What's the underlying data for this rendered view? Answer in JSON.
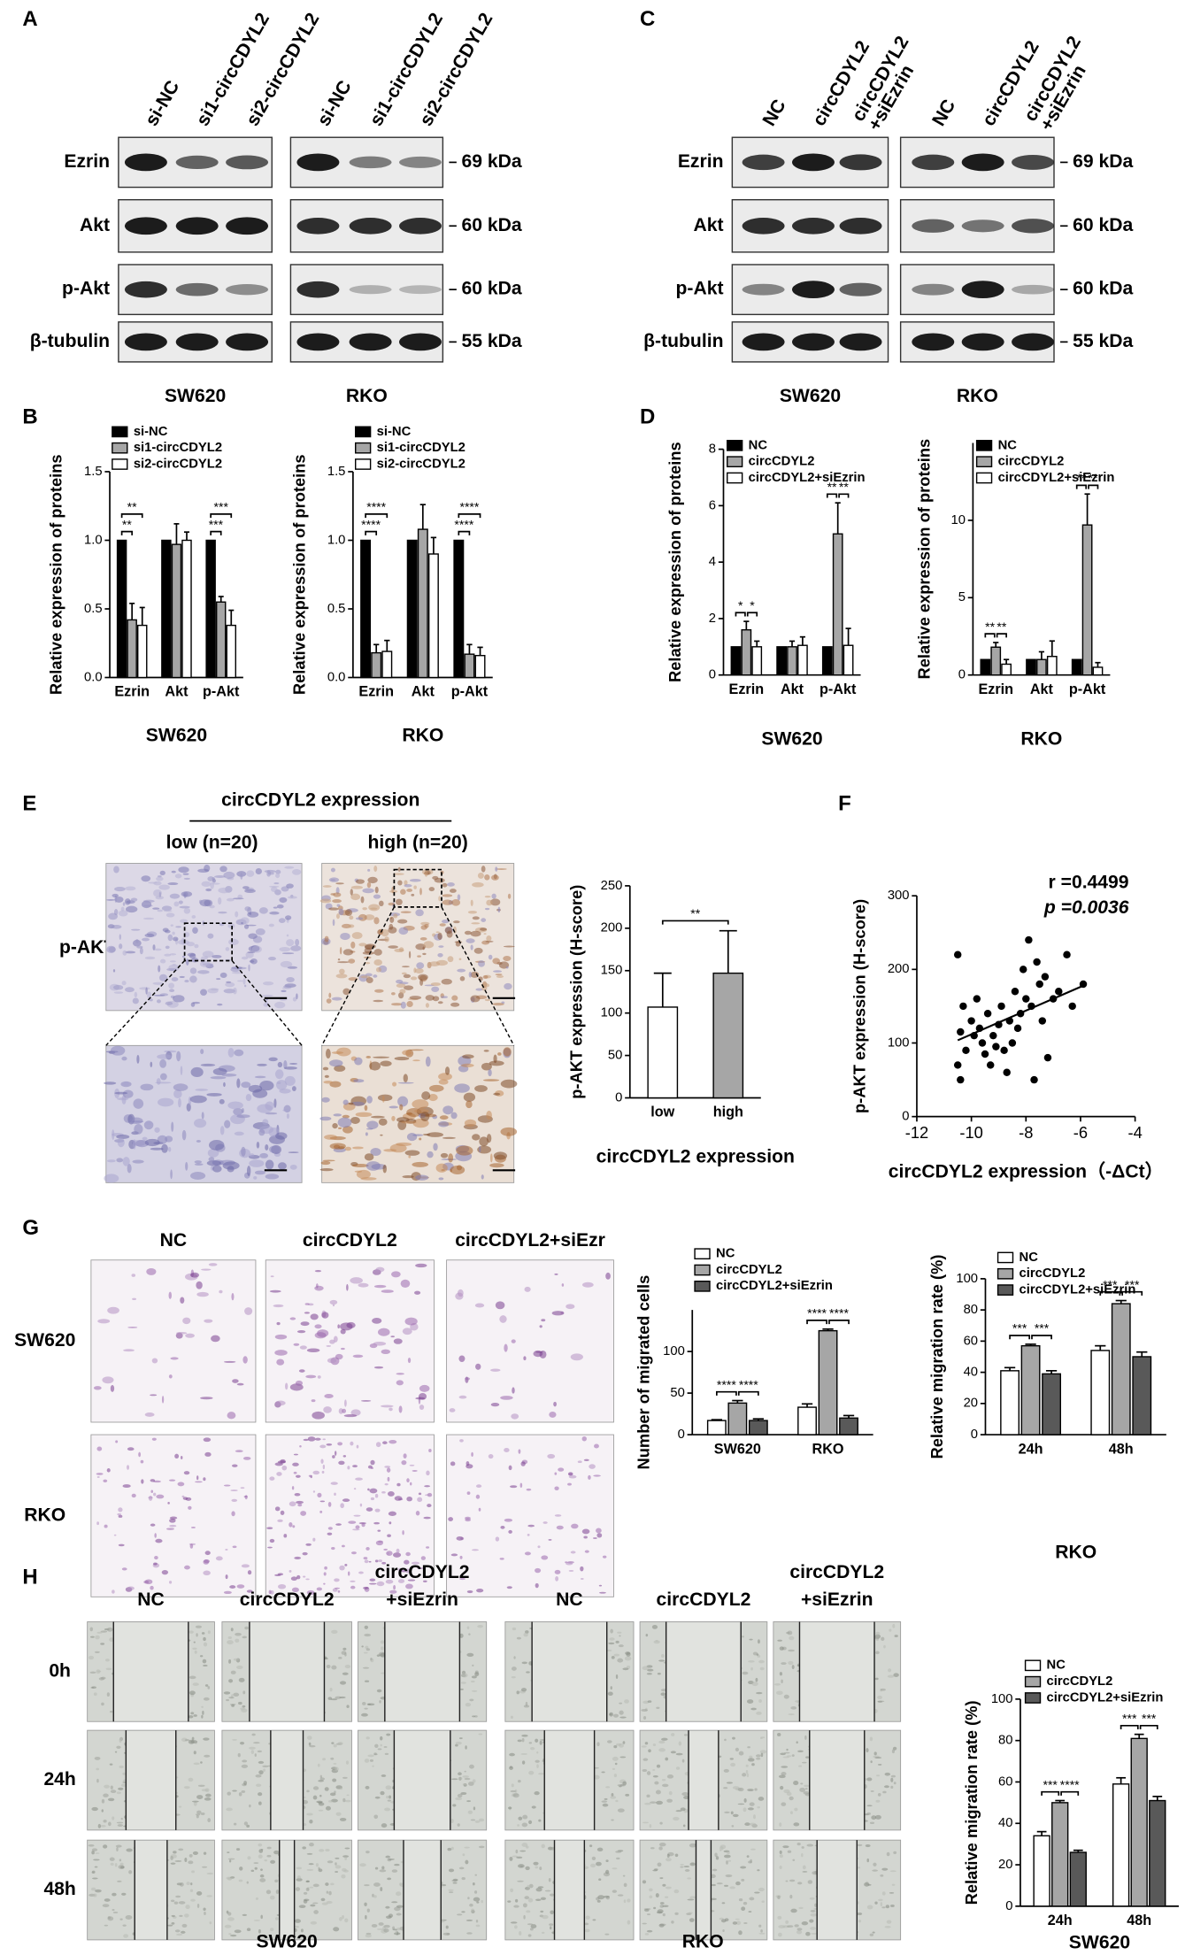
{
  "panel_labels": [
    "A",
    "B",
    "C",
    "D",
    "E",
    "F",
    "G",
    "H"
  ],
  "blots": [
    {
      "lanes": [
        [
          "si-NC"
        ],
        [
          "si1-circCDYL2"
        ],
        [
          "si2-circCDYL2"
        ]
      ],
      "proteins": [
        "Ezrin",
        "Akt",
        "p-Akt",
        "β-tubulin"
      ],
      "sizes": [
        "69 kDa",
        "60 kDa",
        "60 kDa",
        "55 kDa"
      ],
      "cell_lines": [
        "SW620",
        "RKO"
      ]
    },
    {
      "lanes": [
        [
          "NC"
        ],
        [
          "circCDYL2"
        ],
        [
          "circCDYL2",
          "+siEzrin"
        ]
      ],
      "proteins": [
        "Ezrin",
        "Akt",
        "p-Akt",
        "β-tubulin"
      ],
      "sizes": [
        "69 kDa",
        "60 kDa",
        "60 kDa",
        "55 kDa"
      ],
      "cell_lines": [
        "SW620",
        "RKO"
      ]
    }
  ],
  "ihc": {
    "heading": "circCDYL2 expression",
    "groups": [
      "low (n=20)",
      "high (n=20)"
    ],
    "row": "p-AKT"
  },
  "transwell": {
    "columns": [
      "NC",
      "circCDYL2",
      "circCDYL2+siEzr"
    ],
    "rows": [
      "SW620",
      "RKO"
    ]
  },
  "wound": {
    "columns": [
      [
        "NC"
      ],
      [
        "circCDYL2"
      ],
      [
        "circCDYL2",
        "+siEzrin"
      ]
    ],
    "rows": [
      "0h",
      "24h",
      "48h"
    ],
    "cell_lines": [
      "SW620",
      "RKO"
    ]
  },
  "chart_data": [
    {
      "type": "bar",
      "xlabel": "SW620",
      "ylabel": "Relative expression of proteins",
      "categories": [
        "Ezrin",
        "Akt",
        "p-Akt"
      ],
      "series": [
        {
          "name": "si-NC",
          "color": "#000000",
          "values": [
            1,
            1,
            1
          ]
        },
        {
          "name": "si1-circCDYL2",
          "color": "#a6a6a6",
          "values": [
            0.42,
            0.97,
            0.55
          ],
          "errors": [
            0.12,
            0.15,
            0.04
          ]
        },
        {
          "name": "si2-circCDYL2",
          "color": "#ffffff",
          "values": [
            0.38,
            1.0,
            0.38
          ],
          "errors": [
            0.13,
            0.06,
            0.11
          ]
        }
      ],
      "ylim": [
        0,
        1.5
      ],
      "yticks": [
        {
          "value": 0,
          "label": "0.0"
        },
        0.5,
        {
          "value": 1,
          "label": "1.0"
        },
        {
          "value": 1.5,
          "label": "1.5"
        }
      ],
      "legend": "upper left",
      "bracket_style": "nested",
      "significance": [
        {
          "category": "Ezrin",
          "labels": [
            "**",
            "**"
          ]
        },
        {
          "category": "p-Akt",
          "labels": [
            "***",
            "***"
          ]
        }
      ]
    },
    {
      "type": "bar",
      "xlabel": "RKO",
      "ylabel": "Relative expression of proteins",
      "categories": [
        "Ezrin",
        "Akt",
        "p-Akt"
      ],
      "series": [
        {
          "name": "si-NC",
          "color": "#000000",
          "values": [
            1,
            1,
            1
          ]
        },
        {
          "name": "si1-circCDYL2",
          "color": "#a6a6a6",
          "values": [
            0.18,
            1.08,
            0.17
          ],
          "errors": [
            0.06,
            0.18,
            0.07
          ]
        },
        {
          "name": "si2-circCDYL2",
          "color": "#ffffff",
          "values": [
            0.19,
            0.9,
            0.16
          ],
          "errors": [
            0.08,
            0.12,
            0.06
          ]
        }
      ],
      "ylim": [
        0,
        1.5
      ],
      "yticks": [
        {
          "value": 0,
          "label": "0.0"
        },
        0.5,
        {
          "value": 1,
          "label": "1.0"
        },
        {
          "value": 1.5,
          "label": "1.5"
        }
      ],
      "legend": "upper left",
      "bracket_style": "nested",
      "significance": [
        {
          "category": "Ezrin",
          "labels": [
            "****",
            "****"
          ]
        },
        {
          "category": "p-Akt",
          "labels": [
            "****",
            "****"
          ]
        }
      ]
    },
    {
      "type": "bar",
      "xlabel": "SW620",
      "ylabel": "Relative expression of proteins",
      "categories": [
        "Ezrin",
        "Akt",
        "p-Akt"
      ],
      "series": [
        {
          "name": "NC",
          "color": "#000000",
          "values": [
            1,
            1,
            1
          ]
        },
        {
          "name": "circCDYL2",
          "color": "#a6a6a6",
          "values": [
            1.6,
            1.0,
            5.0
          ],
          "errors": [
            0.3,
            0.2,
            1.1
          ]
        },
        {
          "name": "circCDYL2+siEzrin",
          "color": "#ffffff",
          "values": [
            1.0,
            1.05,
            1.05
          ],
          "errors": [
            0.2,
            0.3,
            0.6
          ]
        }
      ],
      "ylim": [
        0,
        8
      ],
      "yticks": [
        0,
        2,
        4,
        6,
        8
      ],
      "legend": "upper left",
      "bracket_style": "adjacent",
      "significance": [
        {
          "category": "Ezrin",
          "labels": [
            "*",
            "*"
          ]
        },
        {
          "category": "p-Akt",
          "labels": [
            "**",
            "**"
          ]
        }
      ]
    },
    {
      "type": "bar",
      "xlabel": "RKO",
      "ylabel": "Relative expression of proteins",
      "categories": [
        "Ezrin",
        "Akt",
        "p-Akt"
      ],
      "series": [
        {
          "name": "NC",
          "color": "#000000",
          "values": [
            1,
            1,
            1
          ]
        },
        {
          "name": "circCDYL2",
          "color": "#a6a6a6",
          "values": [
            1.8,
            1.0,
            9.7
          ],
          "errors": [
            0.3,
            0.5,
            2.0
          ]
        },
        {
          "name": "circCDYL2+siEzrin",
          "color": "#ffffff",
          "values": [
            0.7,
            1.2,
            0.5
          ],
          "errors": [
            0.3,
            1.0,
            0.3
          ]
        }
      ],
      "ylim": [
        0,
        15
      ],
      "yticks": [
        0,
        5,
        10
      ],
      "legend": "upper left",
      "bracket_style": "adjacent",
      "significance": [
        {
          "category": "Ezrin",
          "labels": [
            "**",
            "**"
          ]
        },
        {
          "category": "p-Akt",
          "labels": [
            "**",
            "**"
          ]
        }
      ]
    },
    {
      "type": "bar",
      "xlabel": "circCDYL2 expression",
      "ylabel": "p-AKT expression (H-score)",
      "categories": [
        "low",
        "high"
      ],
      "values": [
        107,
        147
      ],
      "errors": [
        40,
        50
      ],
      "colors": [
        "#ffffff",
        "#a6a6a6"
      ],
      "ylim": [
        0,
        250
      ],
      "yticks": [
        0,
        50,
        100,
        150,
        200,
        250
      ],
      "bracket_style": "across",
      "significance": [
        {
          "labels": [
            "**"
          ]
        }
      ]
    },
    {
      "type": "scatter",
      "xlabel": "circCDYL2 expression（-ΔCt）",
      "ylabel": "p-AKT expression (H-score)",
      "x": [
        -10.5,
        -10.3,
        -10.4,
        -10.2,
        -10.5,
        -10.4,
        -10,
        -9.9,
        -9.8,
        -9.7,
        -9.6,
        -9.5,
        -9.4,
        -9.3,
        -9.2,
        -9.1,
        -9,
        -8.9,
        -8.8,
        -8.7,
        -8.6,
        -8.5,
        -8.4,
        -8.3,
        -8.2,
        -8.1,
        -8,
        -7.9,
        -7.8,
        -7.7,
        -7.6,
        -7.5,
        -7.4,
        -7.3,
        -7.2,
        -7,
        -6.8,
        -6.5,
        -6.3,
        -5.9
      ],
      "y": [
        220,
        150,
        115,
        90,
        70,
        50,
        130,
        110,
        160,
        120,
        100,
        85,
        140,
        70,
        110,
        95,
        125,
        150,
        90,
        60,
        130,
        100,
        170,
        120,
        140,
        200,
        160,
        240,
        150,
        50,
        210,
        180,
        130,
        190,
        80,
        160,
        170,
        220,
        150,
        180
      ],
      "xlim": [
        -12,
        -4
      ],
      "xticks": [
        -12,
        -10,
        -8,
        -6,
        -4
      ],
      "ylim": [
        0,
        300
      ],
      "yticks": [
        0,
        100,
        200,
        300
      ],
      "color": "#000000",
      "trendline": true,
      "annotations": [
        "r =0.4499",
        "p =0.0036"
      ]
    },
    {
      "type": "bar",
      "ylabel": "Number of migrated cells",
      "categories": [
        "SW620",
        "RKO"
      ],
      "series": [
        {
          "name": "NC",
          "color": "#ffffff",
          "values": [
            17,
            33
          ],
          "errors": [
            1,
            4
          ]
        },
        {
          "name": "circCDYL2",
          "color": "#a6a6a6",
          "values": [
            38,
            125
          ],
          "errors": [
            3,
            2
          ]
        },
        {
          "name": "circCDYL2+siEzrin",
          "color": "#595959",
          "values": [
            17,
            20
          ],
          "errors": [
            2,
            3
          ]
        }
      ],
      "ylim": [
        0,
        150
      ],
      "yticks": [
        0,
        50,
        100
      ],
      "legend": "upper left",
      "bracket_style": "adjacent",
      "significance": [
        {
          "category": "SW620",
          "labels": [
            "****",
            "****"
          ]
        },
        {
          "category": "RKO",
          "labels": [
            "****",
            "****"
          ]
        }
      ]
    },
    {
      "type": "bar",
      "xlabel": "RKO",
      "ylabel": "Relative migration rate (%)",
      "categories": [
        "24h",
        "48h"
      ],
      "series": [
        {
          "name": "NC",
          "color": "#ffffff",
          "values": [
            41,
            54
          ],
          "errors": [
            2,
            3
          ]
        },
        {
          "name": "circCDYL2",
          "color": "#a6a6a6",
          "values": [
            57,
            84
          ],
          "errors": [
            1,
            2
          ]
        },
        {
          "name": "circCDYL2+siEzrin",
          "color": "#595959",
          "values": [
            39,
            50
          ],
          "errors": [
            2,
            3
          ]
        }
      ],
      "ylim": [
        0,
        100
      ],
      "yticks": [
        0,
        20,
        40,
        60,
        80,
        100
      ],
      "legend": "upper left",
      "bracket_style": "adjacent",
      "significance": [
        {
          "category": "24h",
          "labels": [
            "***",
            "***"
          ]
        },
        {
          "category": "48h",
          "labels": [
            "***",
            "***"
          ]
        }
      ]
    },
    {
      "type": "bar",
      "xlabel": "SW620",
      "ylabel": "Relative migration rate (%)",
      "categories": [
        "24h",
        "48h"
      ],
      "series": [
        {
          "name": "NC",
          "color": "#ffffff",
          "values": [
            34,
            59
          ],
          "errors": [
            2,
            3
          ]
        },
        {
          "name": "circCDYL2",
          "color": "#a6a6a6",
          "values": [
            50,
            81
          ],
          "errors": [
            1,
            2
          ]
        },
        {
          "name": "circCDYL2+siEzrin",
          "color": "#595959",
          "values": [
            26,
            51
          ],
          "errors": [
            1,
            2
          ]
        }
      ],
      "ylim": [
        0,
        100
      ],
      "yticks": [
        0,
        20,
        40,
        60,
        80,
        100
      ],
      "legend": "upper left",
      "bracket_style": "adjacent",
      "significance": [
        {
          "category": "24h",
          "labels": [
            "***",
            "****"
          ]
        },
        {
          "category": "48h",
          "labels": [
            "***",
            "***"
          ]
        }
      ]
    }
  ]
}
